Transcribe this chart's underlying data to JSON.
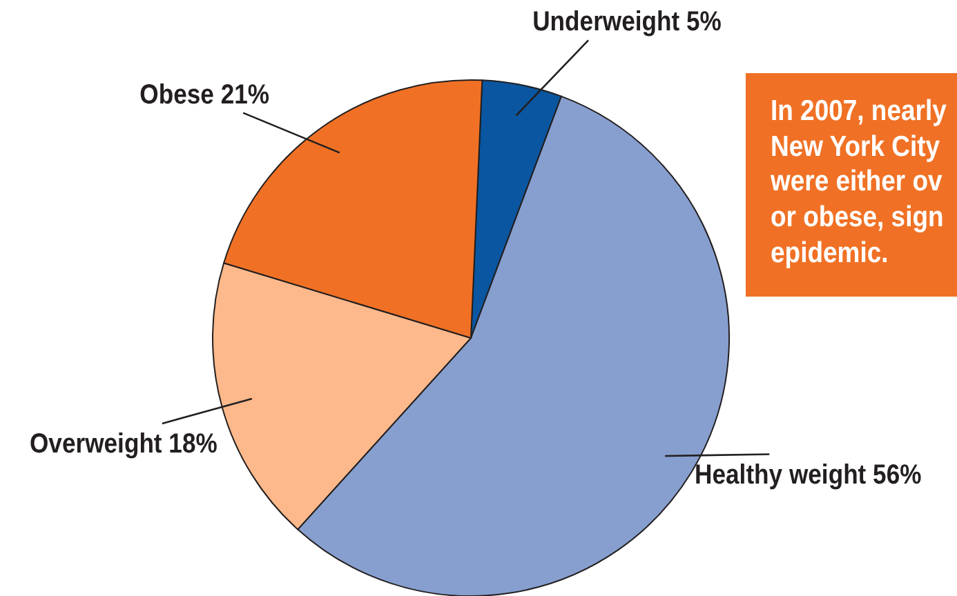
{
  "chart_data": {
    "type": "pie",
    "categories": [
      "Underweight",
      "Healthy weight",
      "Overweight",
      "Obese"
    ],
    "values": [
      5,
      56,
      18,
      21
    ],
    "colors": [
      "#0a56a0",
      "#879fcf",
      "#fdb98b",
      "#f07125"
    ],
    "value_labels": [
      "5%",
      "56%",
      "18%",
      "21%"
    ],
    "annotations": [
      "In 2007, nearly\nNew York City\nwere either ov\nor obese, sign\nepidemic."
    ]
  }
}
